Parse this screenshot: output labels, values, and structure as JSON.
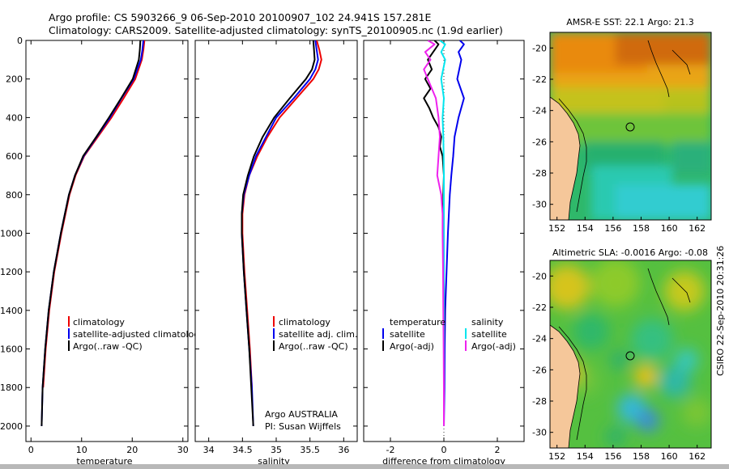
{
  "header": {
    "line1": "Argo profile: CS 5903266_9 06-Sep-2010 20100907_102 24.941S 157.281E",
    "line2": "Climatology: CARS2009. Satellite-adjusted climatology: synTS_20100905.nc (1.9d earlier)"
  },
  "credit": "CSIRO 22-Sep-2010 20:31:26",
  "colors": {
    "red": "#ee0000",
    "blue": "#0000ee",
    "black": "#000000",
    "cyan": "#00e5ee",
    "magenta": "#ee22ee"
  },
  "chart_data": [
    {
      "type": "line",
      "xlabel": "temperature",
      "xlim": [
        -1,
        31
      ],
      "xticks": [
        0,
        10,
        20,
        30
      ],
      "ylim": [
        2080,
        0
      ],
      "yticks": [
        0,
        200,
        400,
        600,
        800,
        1000,
        1200,
        1400,
        1600,
        1800,
        2000
      ],
      "series": [
        {
          "name": "climatology",
          "color": "#ee0000",
          "depth": [
            0,
            50,
            100,
            200,
            300,
            400,
            500,
            600,
            700,
            800,
            1000,
            1200,
            1400,
            1600,
            1800
          ],
          "values": [
            22.4,
            22.2,
            21.9,
            20.6,
            18.3,
            15.9,
            13.2,
            10.5,
            8.8,
            7.6,
            6.0,
            4.6,
            3.6,
            2.9,
            2.4
          ]
        },
        {
          "name": "satellite-adjusted climatology",
          "color": "#0000ee",
          "depth": [
            0,
            50,
            100,
            200,
            300,
            400,
            500,
            600,
            700,
            800,
            1000,
            1200,
            1400,
            1600,
            1800,
            2000
          ],
          "values": [
            22.2,
            22.0,
            21.7,
            20.3,
            17.9,
            15.6,
            13.0,
            10.4,
            8.7,
            7.5,
            5.9,
            4.5,
            3.5,
            2.8,
            2.3,
            2.1
          ]
        },
        {
          "name": "Argo(..raw -QC)",
          "color": "#000000",
          "depth": [
            0,
            50,
            100,
            200,
            300,
            400,
            500,
            600,
            700,
            800,
            1000,
            1200,
            1400,
            1600,
            1800,
            2000
          ],
          "values": [
            21.6,
            21.5,
            21.3,
            20.1,
            17.8,
            15.4,
            12.9,
            10.3,
            8.7,
            7.5,
            5.9,
            4.5,
            3.5,
            2.8,
            2.3,
            2.1
          ]
        }
      ],
      "legend": {
        "entries": [
          "climatology",
          "satellite-adjusted climatology",
          "Argo(..raw -QC)"
        ]
      }
    },
    {
      "type": "line",
      "xlabel": "salinity",
      "xlim": [
        33.8,
        36.2
      ],
      "xticks": [
        34,
        34.5,
        35,
        35.5,
        36
      ],
      "ylim": [
        2080,
        0
      ],
      "series": [
        {
          "name": "climatology",
          "color": "#ee0000",
          "depth": [
            0,
            50,
            100,
            150,
            200,
            300,
            400,
            500,
            600,
            700,
            800,
            900,
            1000,
            1200,
            1400,
            1600,
            1800
          ],
          "values": [
            35.6,
            35.64,
            35.67,
            35.63,
            35.55,
            35.3,
            35.05,
            34.87,
            34.72,
            34.6,
            34.53,
            34.5,
            34.5,
            34.53,
            34.57,
            34.61,
            34.64
          ]
        },
        {
          "name": "satellite adj. clim.",
          "color": "#0000ee",
          "depth": [
            0,
            50,
            100,
            150,
            200,
            300,
            400,
            500,
            600,
            700,
            800,
            900,
            1000,
            1200,
            1400,
            1600,
            1800,
            2000
          ],
          "values": [
            35.58,
            35.6,
            35.62,
            35.58,
            35.5,
            35.26,
            35.0,
            34.85,
            34.7,
            34.6,
            34.52,
            34.49,
            34.49,
            34.52,
            34.56,
            34.6,
            34.64,
            34.66
          ]
        },
        {
          "name": "Argo(..raw -QC)",
          "color": "#000000",
          "depth": [
            0,
            50,
            100,
            150,
            200,
            300,
            400,
            500,
            600,
            700,
            800,
            900,
            1000,
            1200,
            1400,
            1600,
            1800,
            2000
          ],
          "values": [
            35.55,
            35.56,
            35.57,
            35.53,
            35.44,
            35.2,
            34.97,
            34.8,
            34.67,
            34.58,
            34.51,
            34.49,
            34.49,
            34.52,
            34.56,
            34.6,
            34.63,
            34.66
          ]
        }
      ],
      "legend": {
        "entries": [
          "climatology",
          "satellite adj. clim.",
          "Argo(..raw -QC)"
        ]
      },
      "annotation": [
        "Argo AUSTRALIA",
        "PI: Susan Wijffels"
      ]
    },
    {
      "type": "line",
      "xlabel": "difference from climatology",
      "xlim": [
        -3,
        3
      ],
      "xticks": [
        -2,
        0,
        2
      ],
      "ylim": [
        2080,
        0
      ],
      "series": [
        {
          "name": "temperature satellite",
          "color": "#0000ee",
          "depth": [
            0,
            20,
            60,
            100,
            200,
            300,
            400,
            500,
            600,
            700,
            800,
            1000,
            1200,
            1400,
            1600,
            1800,
            2000
          ],
          "values": [
            0.6,
            0.75,
            0.55,
            0.65,
            0.5,
            0.75,
            0.55,
            0.4,
            0.35,
            0.28,
            0.22,
            0.15,
            0.1,
            0.05,
            0.03,
            0.02,
            0.0
          ]
        },
        {
          "name": "temperature Argo(-adj)",
          "color": "#000000",
          "depth": [
            0,
            20,
            60,
            100,
            150,
            200,
            250,
            300,
            350,
            400,
            450,
            500,
            550,
            600,
            700,
            800,
            1000,
            1200,
            1400,
            1600,
            1800,
            2000
          ],
          "values": [
            -0.35,
            -0.2,
            -0.4,
            -0.6,
            -0.45,
            -0.7,
            -0.5,
            -0.75,
            -0.55,
            -0.4,
            -0.2,
            -0.1,
            -0.15,
            -0.05,
            0.0,
            -0.02,
            0.0,
            0.0,
            0.01,
            0.0,
            0.0,
            0.0
          ]
        },
        {
          "name": "salinity satellite",
          "color": "#00e5ee",
          "depth": [
            0,
            20,
            60,
            100,
            200,
            300,
            400,
            500,
            600,
            700,
            800,
            1000,
            1200,
            1400,
            1600,
            1800,
            2000
          ],
          "values": [
            -0.15,
            0.05,
            -0.1,
            0.05,
            -0.1,
            0.0,
            -0.05,
            -0.02,
            -0.01,
            0.0,
            0.0,
            0.0,
            0.0,
            0.0,
            0.0,
            0.0,
            0.0
          ]
        },
        {
          "name": "salinity Argo(-adj)",
          "color": "#ee22ee",
          "depth": [
            0,
            20,
            60,
            100,
            150,
            200,
            300,
            400,
            500,
            600,
            700,
            800,
            900,
            1000,
            1200,
            1400,
            1600,
            1800,
            2000
          ],
          "values": [
            -0.6,
            -0.35,
            -0.7,
            -0.5,
            -0.75,
            -0.6,
            -0.3,
            -0.2,
            -0.15,
            -0.2,
            -0.25,
            -0.1,
            -0.05,
            -0.05,
            -0.03,
            -0.02,
            -0.01,
            0.0,
            0.0
          ]
        }
      ],
      "legend": {
        "headers": [
          "temperature",
          "salinity"
        ],
        "entries": [
          "satellite",
          "Argo(-adj)",
          "satellite",
          "Argo(-adj)"
        ]
      }
    },
    {
      "type": "heatmap",
      "title": "AMSR-E SST: 22.1  Argo: 21.3",
      "xticks": [
        152,
        154,
        156,
        158,
        160,
        162
      ],
      "yticks": [
        -20,
        -22,
        -24,
        -26,
        -28,
        -30
      ],
      "xlim": [
        151.5,
        163
      ],
      "ylim": [
        -31,
        -19
      ]
    },
    {
      "type": "heatmap",
      "title": "Altimetric SLA: -0.0016  Argo: -0.08",
      "xticks": [
        152,
        154,
        156,
        158,
        160,
        162
      ],
      "yticks": [
        -20,
        -22,
        -24,
        -26,
        -28,
        -30
      ],
      "xlim": [
        151.5,
        163
      ],
      "ylim": [
        -31,
        -19
      ]
    }
  ]
}
